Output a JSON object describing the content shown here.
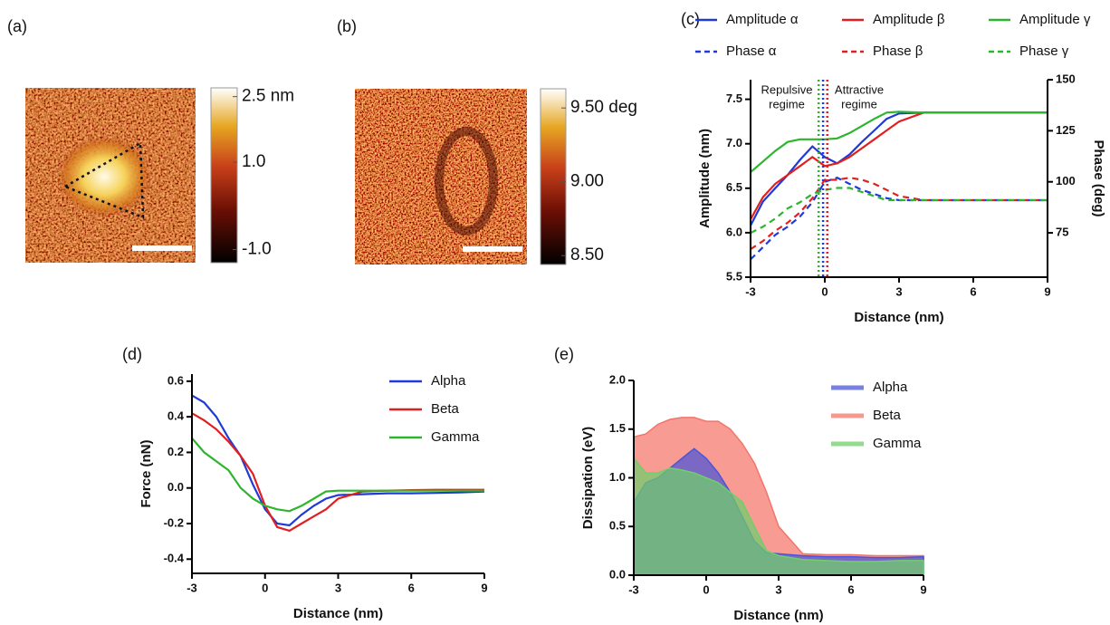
{
  "chart_data": [
    {
      "type": "image",
      "label": "(a)",
      "clim": [
        -1.3,
        2.7
      ],
      "cticks": [
        {
          "value": 2.5,
          "label": "2.5 nm"
        },
        {
          "value": 1,
          "label": "1.0"
        },
        {
          "value": -1,
          "label": "-1.0"
        }
      ]
    },
    {
      "type": "image",
      "label": "(b)",
      "clim": [
        8.44,
        9.63
      ],
      "cticks": [
        {
          "value": 9.5,
          "label": "9.50 deg"
        },
        {
          "value": 9,
          "label": "9.00"
        },
        {
          "value": 8.5,
          "label": "8.50"
        }
      ]
    },
    {
      "type": "line",
      "label": "(c)",
      "xlabel": "Distance (nm)",
      "ylabel": "Amplitude (nm)",
      "y2label": "Phase (deg)",
      "xlim": [
        -3,
        9
      ],
      "xticks": [
        -3,
        0,
        3,
        6,
        9
      ],
      "ylim": [
        5.5,
        7.72
      ],
      "yticks": [
        5.5,
        {
          "value": 6,
          "label": "6.0"
        },
        6.5,
        {
          "value": 7,
          "label": "7.0"
        },
        7.5
      ],
      "y2lim": [
        53.3,
        150
      ],
      "y2ticks": [
        75,
        100,
        125,
        150
      ],
      "x": [
        -3,
        -2.5,
        -2,
        -1.5,
        -1,
        -0.5,
        0,
        0.5,
        1,
        1.5,
        2,
        2.5,
        3,
        4,
        5,
        6,
        7,
        8,
        9
      ],
      "series": [
        {
          "name": "Amplitude α",
          "color": "#1f3ad6",
          "style": "solid",
          "values": [
            6.08,
            6.35,
            6.5,
            6.65,
            6.82,
            6.97,
            6.85,
            6.78,
            6.88,
            7.02,
            7.15,
            7.28,
            7.34,
            7.35,
            7.35,
            7.35,
            7.35,
            7.35,
            7.35
          ]
        },
        {
          "name": "Amplitude β",
          "color": "#e02020",
          "style": "solid",
          "values": [
            6.15,
            6.4,
            6.55,
            6.65,
            6.75,
            6.85,
            6.75,
            6.78,
            6.85,
            6.95,
            7.05,
            7.15,
            7.25,
            7.35,
            7.35,
            7.35,
            7.35,
            7.35,
            7.35
          ]
        },
        {
          "name": "Amplitude γ",
          "color": "#2db52d",
          "style": "solid",
          "values": [
            6.68,
            6.8,
            6.92,
            7.02,
            7.05,
            7.05,
            7.05,
            7.06,
            7.12,
            7.2,
            7.28,
            7.35,
            7.36,
            7.35,
            7.35,
            7.35,
            7.35,
            7.35,
            7.35
          ]
        },
        {
          "name": "Phase α",
          "color": "#1f3ad6",
          "style": "dashed",
          "axis": "y2",
          "values": [
            62,
            68,
            74,
            78,
            83,
            90,
            100,
            102,
            99,
            96,
            94,
            92,
            91,
            91,
            91,
            91,
            91,
            91,
            91
          ]
        },
        {
          "name": "Phase β",
          "color": "#e02020",
          "style": "dashed",
          "axis": "y2",
          "values": [
            67,
            71,
            76,
            80,
            85,
            92,
            101,
            101,
            102,
            101,
            99,
            96,
            93,
            91,
            91,
            91,
            91,
            91,
            91
          ]
        },
        {
          "name": "Phase γ",
          "color": "#2db52d",
          "style": "dashed",
          "axis": "y2",
          "values": [
            75,
            78,
            82,
            87,
            90,
            94,
            96,
            97,
            97,
            95,
            93,
            91,
            91,
            91,
            91,
            91,
            91,
            91,
            91
          ]
        }
      ],
      "vlines": [
        {
          "x": -0.25,
          "color": "#2db52d"
        },
        {
          "x": -0.07,
          "color": "#1f3ad6"
        },
        {
          "x": 0.1,
          "color": "#e02020"
        }
      ],
      "annotations": [
        [
          "Repulsive",
          "regime"
        ],
        [
          "Attractive",
          "regime"
        ]
      ]
    },
    {
      "type": "line",
      "label": "(d)",
      "xlabel": "Distance (nm)",
      "ylabel": "Force (nN)",
      "xlim": [
        -3,
        9
      ],
      "xticks": [
        -3,
        0,
        3,
        6,
        9
      ],
      "ylim": [
        -0.48,
        0.64
      ],
      "yticks": [
        -0.4,
        -0.2,
        {
          "value": 0,
          "label": "0.0"
        },
        0.2,
        0.4,
        0.6
      ],
      "x": [
        -3,
        -2.5,
        -2,
        -1.5,
        -1,
        -0.5,
        0,
        0.5,
        1,
        1.5,
        2,
        2.5,
        3,
        4,
        5,
        6,
        7,
        8,
        9
      ],
      "series": [
        {
          "name": "Alpha",
          "color": "#1f3ad6",
          "values": [
            0.52,
            0.48,
            0.4,
            0.28,
            0.18,
            0.02,
            -0.12,
            -0.2,
            -0.21,
            -0.15,
            -0.1,
            -0.06,
            -0.04,
            -0.035,
            -0.03,
            -0.03,
            -0.028,
            -0.025,
            -0.02
          ]
        },
        {
          "name": "Beta",
          "color": "#e02020",
          "values": [
            0.42,
            0.38,
            0.33,
            0.26,
            0.18,
            0.08,
            -0.1,
            -0.22,
            -0.24,
            -0.2,
            -0.16,
            -0.12,
            -0.06,
            -0.02,
            -0.015,
            -0.012,
            -0.01,
            -0.01,
            -0.01
          ]
        },
        {
          "name": "Gamma",
          "color": "#2db52d",
          "values": [
            0.28,
            0.2,
            0.15,
            0.1,
            0,
            -0.06,
            -0.1,
            -0.12,
            -0.13,
            -0.1,
            -0.06,
            -0.02,
            -0.015,
            -0.015,
            -0.015,
            -0.015,
            -0.015,
            -0.015,
            -0.015
          ]
        }
      ]
    },
    {
      "type": "area",
      "label": "(e)",
      "xlabel": "Distance (nm)",
      "ylabel": "Dissipation (eV)",
      "xlim": [
        -3,
        9
      ],
      "xticks": [
        -3,
        0,
        3,
        6,
        9
      ],
      "ylim": [
        0,
        2
      ],
      "yticks": [
        {
          "value": 0,
          "label": "0.0"
        },
        0.5,
        {
          "value": 1,
          "label": "1.0"
        },
        1.5,
        {
          "value": 2,
          "label": "2.0"
        }
      ],
      "x": [
        -3,
        -2.5,
        -2,
        -1.5,
        -1,
        -0.5,
        0,
        0.5,
        1,
        1.5,
        2,
        2.5,
        3,
        4,
        5,
        6,
        7,
        8,
        9
      ],
      "series": [
        {
          "name": "Alpha",
          "color": "#4b55d8",
          "values": [
            0.75,
            0.95,
            1.0,
            1.1,
            1.2,
            1.3,
            1.2,
            1.05,
            0.85,
            0.6,
            0.35,
            0.23,
            0.22,
            0.2,
            0.19,
            0.19,
            0.18,
            0.18,
            0.19
          ]
        },
        {
          "name": "Beta",
          "color": "#f4756a",
          "values": [
            1.42,
            1.45,
            1.55,
            1.6,
            1.62,
            1.62,
            1.58,
            1.58,
            1.5,
            1.35,
            1.15,
            0.85,
            0.5,
            0.22,
            0.21,
            0.21,
            0.2,
            0.2,
            0.2
          ]
        },
        {
          "name": "Gamma",
          "color": "#6fcf6a",
          "values": [
            1.2,
            1.05,
            1.05,
            1.1,
            1.08,
            1.05,
            1.0,
            0.95,
            0.85,
            0.75,
            0.5,
            0.25,
            0.2,
            0.16,
            0.15,
            0.14,
            0.14,
            0.15,
            0.15
          ]
        }
      ]
    }
  ]
}
